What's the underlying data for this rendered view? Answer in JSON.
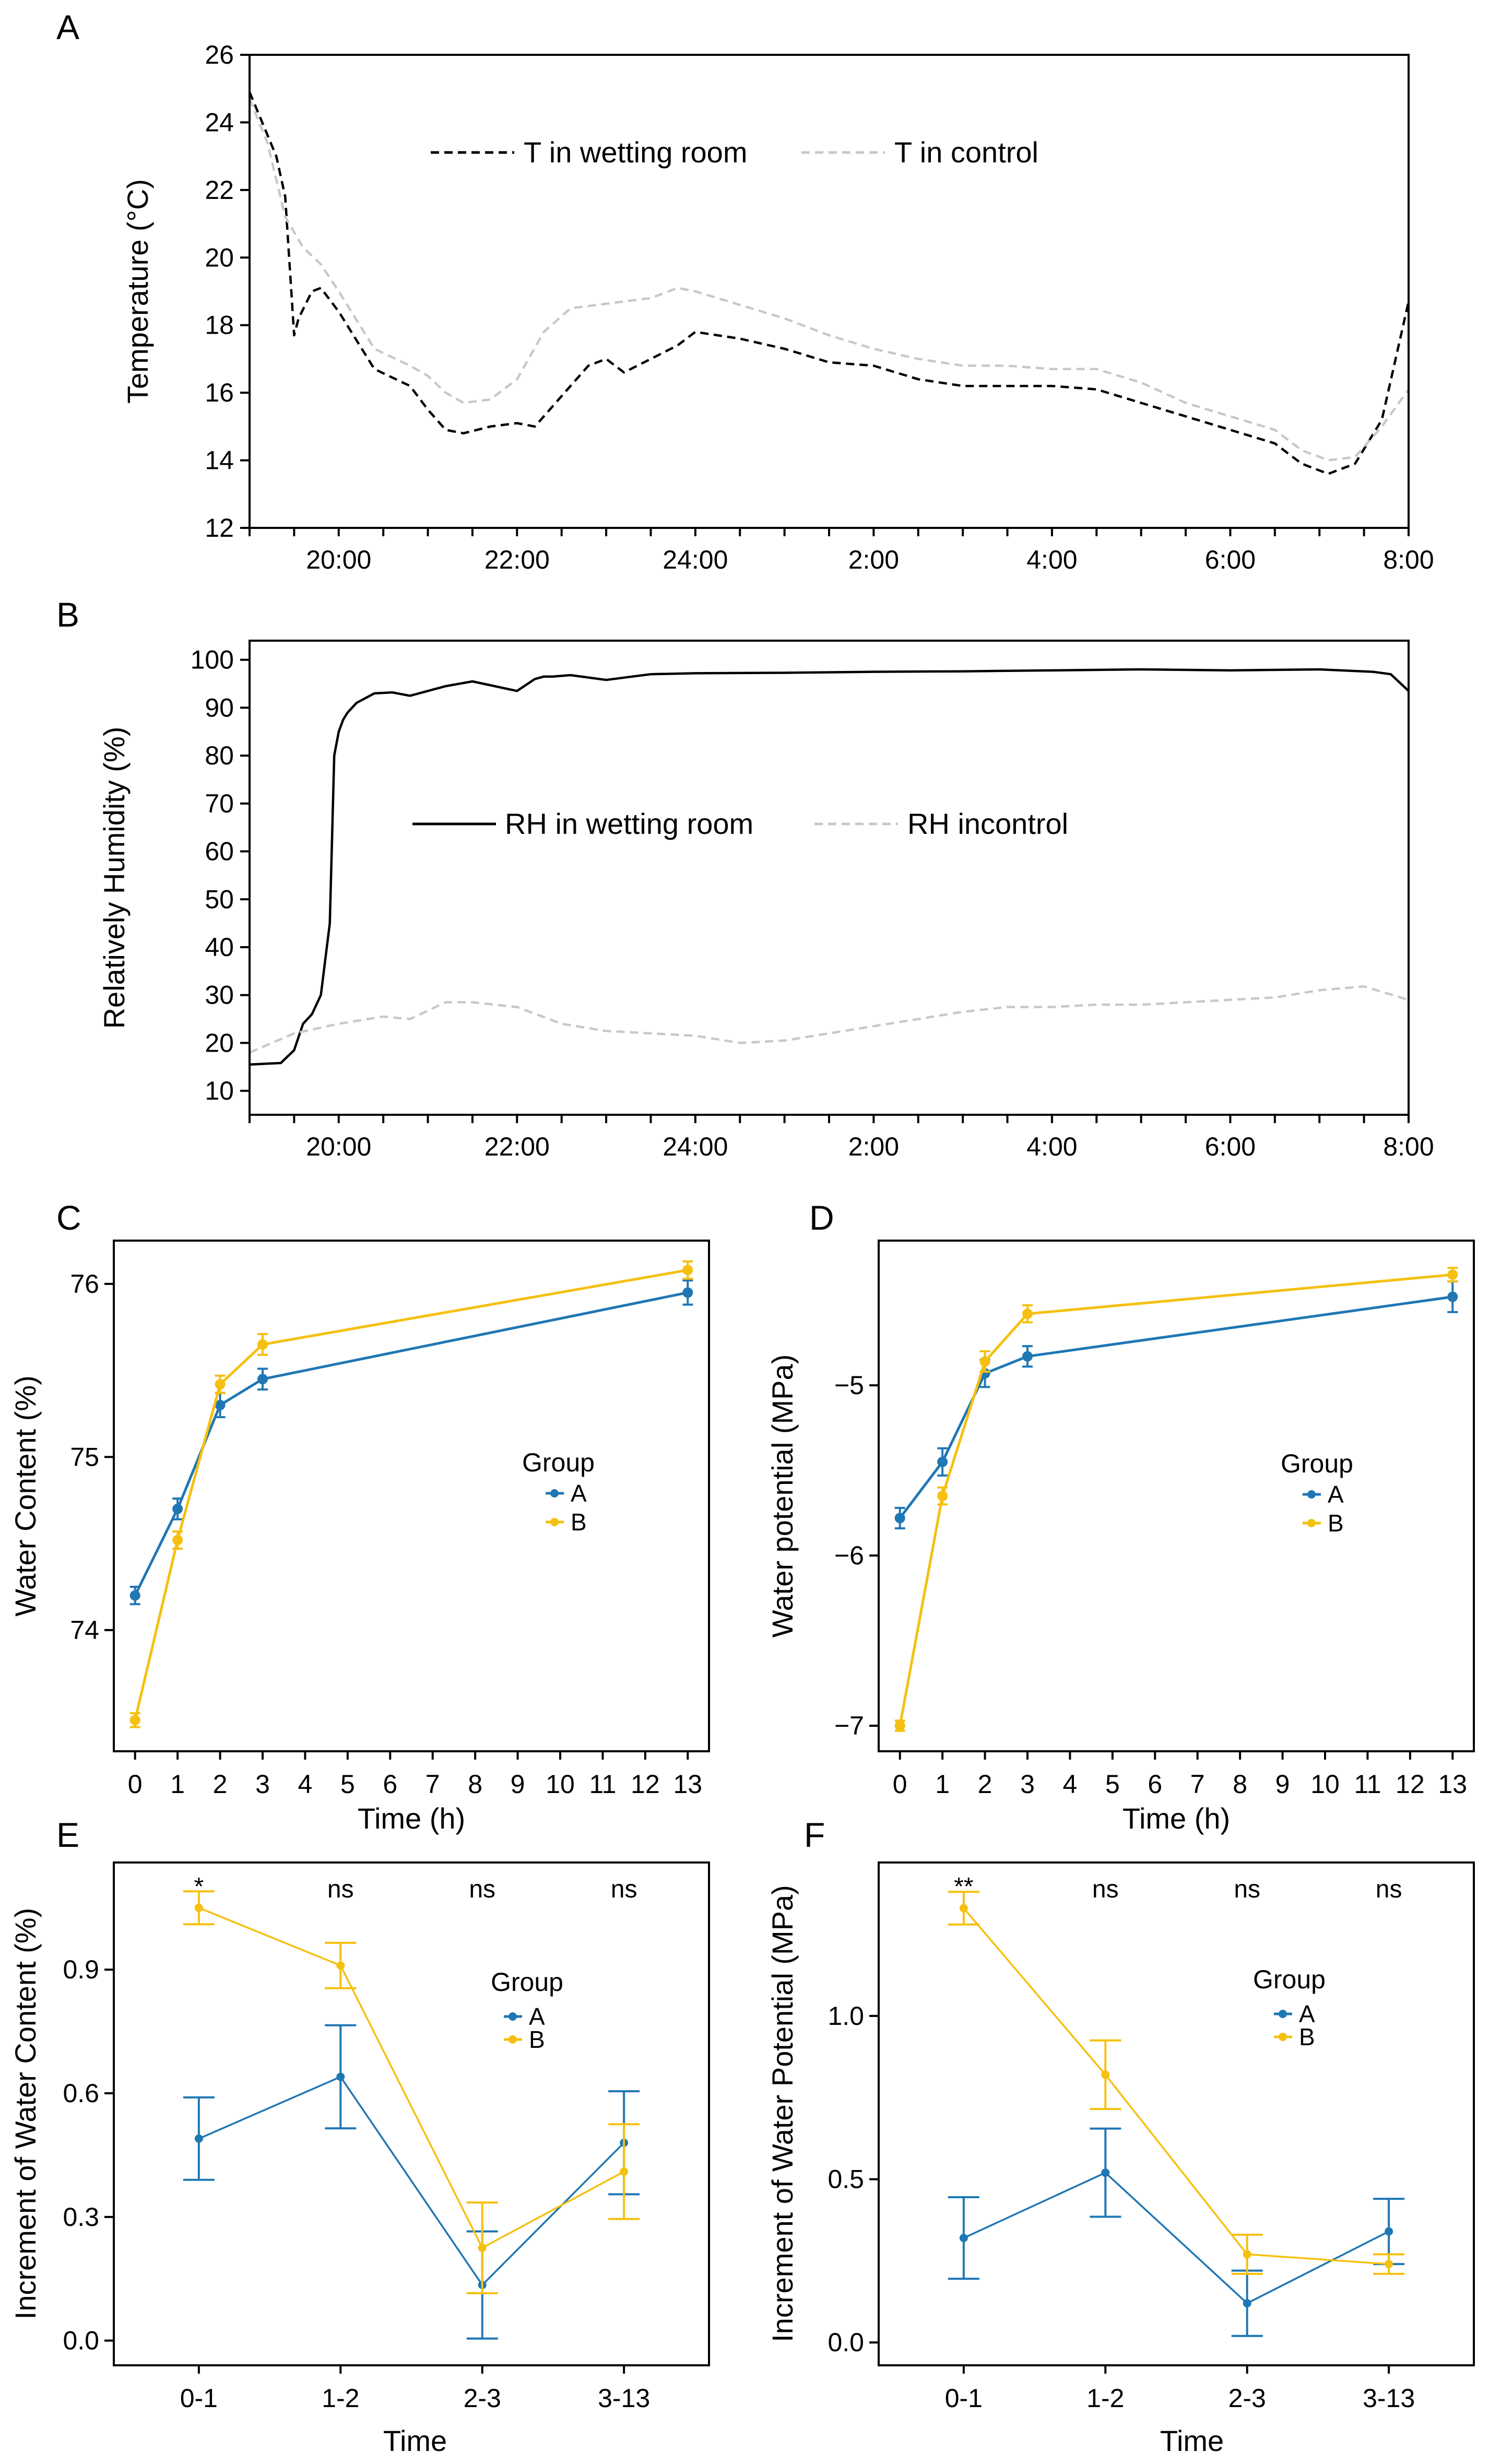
{
  "colors": {
    "black": "#000000",
    "grey": "#c8c8c8",
    "blue": "#1f77b4",
    "yellow": "#f5c010"
  },
  "chart_data": [
    {
      "id": "A",
      "panel_label": "A",
      "type": "line",
      "ylabel": "Temperature (°C)",
      "xlabel": "",
      "x_hours_since_19": [
        0,
        13
      ],
      "ylim": [
        12,
        26
      ],
      "yticks": [
        "12",
        "14",
        "16",
        "18",
        "20",
        "22",
        "24",
        "26"
      ],
      "xticks": [
        "20:00",
        "22:00",
        "24:00",
        "2:00",
        "4:00",
        "6:00",
        "8:00"
      ],
      "legend_placement": "top-center",
      "series": [
        {
          "name": "T in wetting room",
          "style": "dashed",
          "color": "black",
          "x": [
            0,
            0.3,
            0.4,
            0.5,
            0.55,
            0.7,
            0.8,
            1.0,
            1.4,
            1.8,
            2.0,
            2.2,
            2.4,
            2.7,
            3.0,
            3.2,
            3.5,
            3.8,
            4.0,
            4.2,
            4.5,
            4.8,
            5.0,
            5.5,
            6.0,
            6.5,
            7.0,
            7.5,
            8.0,
            8.5,
            9.0,
            9.5,
            10.0,
            10.5,
            11.0,
            11.5,
            11.8,
            12.1,
            12.4,
            12.7,
            13.0
          ],
          "y": [
            24.9,
            23.0,
            21.8,
            17.7,
            18.2,
            19.0,
            19.1,
            18.4,
            16.7,
            16.2,
            15.5,
            14.9,
            14.8,
            15.0,
            15.1,
            15.0,
            15.9,
            16.8,
            17.0,
            16.6,
            17.0,
            17.4,
            17.8,
            17.6,
            17.3,
            16.9,
            16.8,
            16.4,
            16.2,
            16.2,
            16.2,
            16.1,
            15.7,
            15.3,
            14.9,
            14.5,
            13.9,
            13.6,
            13.9,
            15.2,
            18.7
          ]
        },
        {
          "name": "T in control",
          "style": "dashed",
          "color": "grey",
          "x": [
            0,
            0.2,
            0.4,
            0.6,
            0.8,
            1.0,
            1.4,
            1.8,
            2.0,
            2.2,
            2.4,
            2.7,
            3.0,
            3.3,
            3.6,
            3.9,
            4.2,
            4.5,
            4.8,
            5.0,
            5.5,
            6.0,
            6.5,
            7.0,
            7.5,
            8.0,
            8.5,
            9.0,
            9.5,
            10.0,
            10.5,
            11.0,
            11.5,
            11.8,
            12.1,
            12.4,
            12.7,
            13.0
          ],
          "y": [
            24.7,
            23.4,
            21.2,
            20.3,
            19.8,
            19.0,
            17.3,
            16.8,
            16.5,
            16.0,
            15.7,
            15.8,
            16.4,
            17.8,
            18.5,
            18.6,
            18.7,
            18.8,
            19.1,
            19.0,
            18.6,
            18.2,
            17.7,
            17.3,
            17.0,
            16.8,
            16.8,
            16.7,
            16.7,
            16.3,
            15.7,
            15.3,
            14.9,
            14.3,
            14.0,
            14.1,
            15.0,
            16.1
          ]
        }
      ]
    },
    {
      "id": "B",
      "panel_label": "B",
      "type": "line",
      "ylabel": "Relatively Humidity (%)",
      "xlabel": "",
      "x_hours_since_19": [
        0,
        13
      ],
      "ylim": [
        5,
        104
      ],
      "yticks": [
        "10",
        "20",
        "30",
        "40",
        "50",
        "60",
        "70",
        "80",
        "90",
        "100"
      ],
      "xticks": [
        "20:00",
        "22:00",
        "24:00",
        "2:00",
        "4:00",
        "6:00",
        "8:00"
      ],
      "legend_placement": "middle-center",
      "series": [
        {
          "name": "RH in wetting room",
          "style": "solid",
          "color": "black",
          "x": [
            0,
            0.35,
            0.5,
            0.6,
            0.7,
            0.8,
            0.9,
            0.95,
            1.0,
            1.05,
            1.1,
            1.2,
            1.4,
            1.6,
            1.8,
            2.0,
            2.2,
            2.5,
            3.0,
            3.2,
            3.3,
            3.4,
            3.6,
            4.0,
            4.5,
            5.0,
            6.0,
            7.0,
            8.0,
            9.0,
            10.0,
            11.0,
            12.0,
            12.6,
            12.8,
            13.0
          ],
          "y": [
            15.5,
            15.8,
            18.5,
            24.0,
            26.0,
            30.0,
            45.0,
            80.0,
            85.0,
            87.5,
            89.0,
            91.0,
            93.0,
            93.2,
            92.5,
            93.5,
            94.5,
            95.5,
            93.5,
            96.0,
            96.5,
            96.5,
            96.8,
            95.8,
            97.0,
            97.2,
            97.3,
            97.5,
            97.6,
            97.8,
            98.0,
            97.8,
            98.0,
            97.5,
            97.0,
            93.5
          ]
        },
        {
          "name": "RH incontrol",
          "style": "dashed",
          "color": "grey",
          "x": [
            0,
            0.5,
            1.0,
            1.5,
            1.8,
            2.2,
            2.5,
            3.0,
            3.5,
            4.0,
            4.5,
            5.0,
            5.5,
            6.0,
            6.5,
            7.0,
            7.5,
            8.0,
            8.5,
            9.0,
            9.5,
            10.0,
            10.5,
            11.0,
            11.5,
            12.0,
            12.5,
            13.0
          ],
          "y": [
            18.0,
            22.0,
            24.0,
            25.5,
            25.0,
            28.5,
            28.5,
            27.5,
            24.0,
            22.5,
            22.0,
            21.5,
            20.0,
            20.5,
            22.0,
            23.5,
            25.0,
            26.5,
            27.5,
            27.5,
            28.0,
            28.0,
            28.5,
            29.0,
            29.5,
            31.0,
            31.8,
            29.0
          ]
        }
      ]
    },
    {
      "id": "C",
      "panel_label": "C",
      "type": "line",
      "ylabel": "Water Content (%)",
      "xlabel": "Time (h)",
      "xlim": [
        -0.5,
        13.5
      ],
      "ylim": [
        73.3,
        76.25
      ],
      "yticks": [
        "74",
        "75",
        "76"
      ],
      "xticks": [
        "0",
        "1",
        "2",
        "3",
        "4",
        "5",
        "6",
        "7",
        "8",
        "9",
        "10",
        "11",
        "12",
        "13"
      ],
      "legend_title": "Group",
      "legend_placement": "center-right",
      "categories_x": [
        0,
        1,
        2,
        3,
        13
      ],
      "series": [
        {
          "name": "A",
          "color": "blue",
          "values": [
            74.2,
            74.7,
            75.3,
            75.45,
            75.95
          ],
          "err": [
            0.05,
            0.06,
            0.07,
            0.06,
            0.07
          ]
        },
        {
          "name": "B",
          "color": "yellow",
          "values": [
            73.48,
            74.52,
            75.42,
            75.65,
            76.08
          ],
          "err": [
            0.04,
            0.05,
            0.05,
            0.06,
            0.05
          ]
        }
      ]
    },
    {
      "id": "D",
      "panel_label": "D",
      "type": "line",
      "ylabel": "Water potential (MPa)",
      "xlabel": "Time (h)",
      "xlim": [
        -0.5,
        13.5
      ],
      "ylim": [
        -7.15,
        -4.15
      ],
      "yticks": [
        "−5",
        "−6",
        "−7"
      ],
      "xticks": [
        "0",
        "1",
        "2",
        "3",
        "4",
        "5",
        "6",
        "7",
        "8",
        "9",
        "10",
        "11",
        "12",
        "13"
      ],
      "legend_title": "Group",
      "legend_placement": "center-right",
      "categories_x": [
        0,
        1,
        2,
        3,
        13
      ],
      "series": [
        {
          "name": "A",
          "color": "blue",
          "values": [
            -5.78,
            -5.45,
            -4.93,
            -4.83,
            -4.48
          ],
          "err": [
            0.06,
            0.08,
            0.08,
            0.06,
            0.09
          ]
        },
        {
          "name": "B",
          "color": "yellow",
          "values": [
            -7.0,
            -5.65,
            -4.86,
            -4.58,
            -4.35
          ],
          "err": [
            0.03,
            0.05,
            0.06,
            0.05,
            0.04
          ]
        }
      ]
    },
    {
      "id": "E",
      "panel_label": "E",
      "type": "line",
      "ylabel": "Increment of Water Content (%)",
      "xlabel": "Time",
      "categories": [
        "0-1",
        "1-2",
        "2-3",
        "3-13"
      ],
      "ylim": [
        -0.06,
        1.16
      ],
      "yticks": [
        "0.0",
        "0.3",
        "0.6",
        "0.9"
      ],
      "significance": [
        "*",
        "ns",
        "ns",
        "ns"
      ],
      "legend_title": "Group",
      "legend_placement": "center-right",
      "series": [
        {
          "name": "A",
          "color": "blue",
          "values": [
            0.49,
            0.64,
            0.135,
            0.48
          ],
          "err": [
            0.1,
            0.125,
            0.13,
            0.125
          ]
        },
        {
          "name": "B",
          "color": "yellow",
          "values": [
            1.05,
            0.91,
            0.225,
            0.41
          ],
          "err": [
            0.04,
            0.055,
            0.11,
            0.115
          ]
        }
      ]
    },
    {
      "id": "F",
      "panel_label": "F",
      "type": "line",
      "ylabel": "Increment of Water Potential (MPa)",
      "xlabel": "Time",
      "categories": [
        "0-1",
        "1-2",
        "2-3",
        "3-13"
      ],
      "ylim": [
        -0.07,
        1.47
      ],
      "yticks": [
        "0.0",
        "0.5",
        "1.0"
      ],
      "significance": [
        "**",
        "ns",
        "ns",
        "ns"
      ],
      "legend_title": "Group",
      "legend_placement": "center-right",
      "series": [
        {
          "name": "A",
          "color": "blue",
          "values": [
            0.32,
            0.52,
            0.12,
            0.34
          ],
          "err": [
            0.125,
            0.135,
            0.1,
            0.1
          ]
        },
        {
          "name": "B",
          "color": "yellow",
          "values": [
            1.33,
            0.82,
            0.27,
            0.24
          ],
          "err": [
            0.05,
            0.105,
            0.06,
            0.03
          ]
        }
      ]
    }
  ]
}
